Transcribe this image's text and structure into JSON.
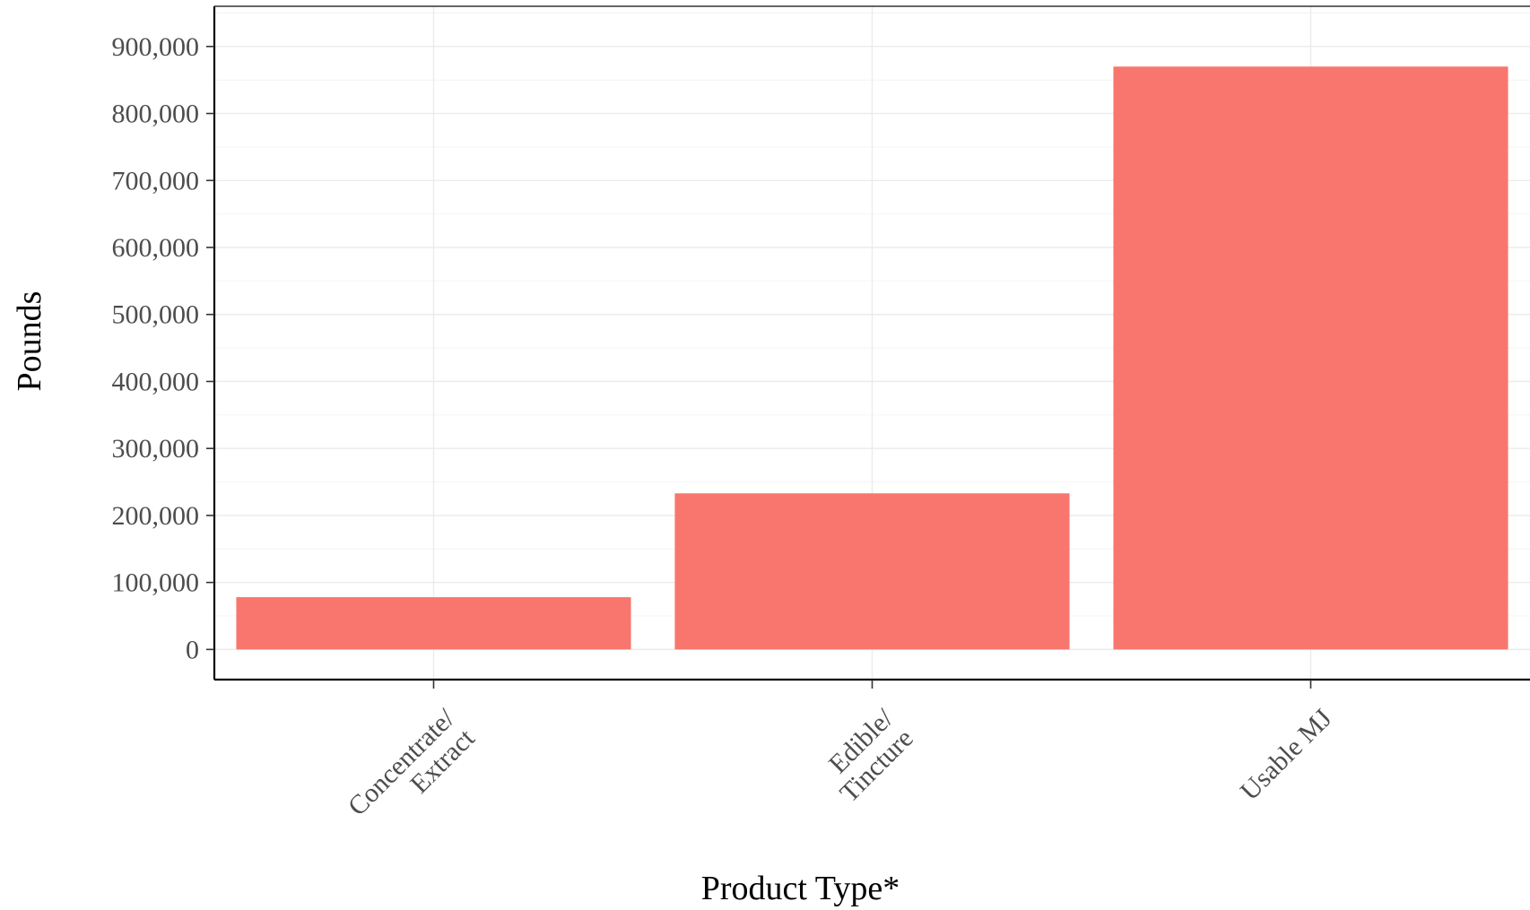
{
  "chart_data": {
    "type": "bar",
    "categories": [
      [
        "Concentrate/",
        "Extract"
      ],
      [
        "Edible/",
        "Tincture"
      ],
      [
        "Usable MJ"
      ]
    ],
    "values": [
      78000,
      233000,
      870000
    ],
    "xlabel": "Product Type*",
    "ylabel": "Pounds",
    "ylim": [
      -45000,
      960000
    ],
    "yticks": [
      0,
      100000,
      200000,
      300000,
      400000,
      500000,
      600000,
      700000,
      800000,
      900000
    ],
    "ytick_labels": [
      "0",
      "100,000",
      "200,000",
      "300,000",
      "400,000",
      "500,000",
      "600,000",
      "700,000",
      "800,000",
      "900,000"
    ],
    "bar_color": "#F8766D",
    "grid": true,
    "legend": "none"
  }
}
